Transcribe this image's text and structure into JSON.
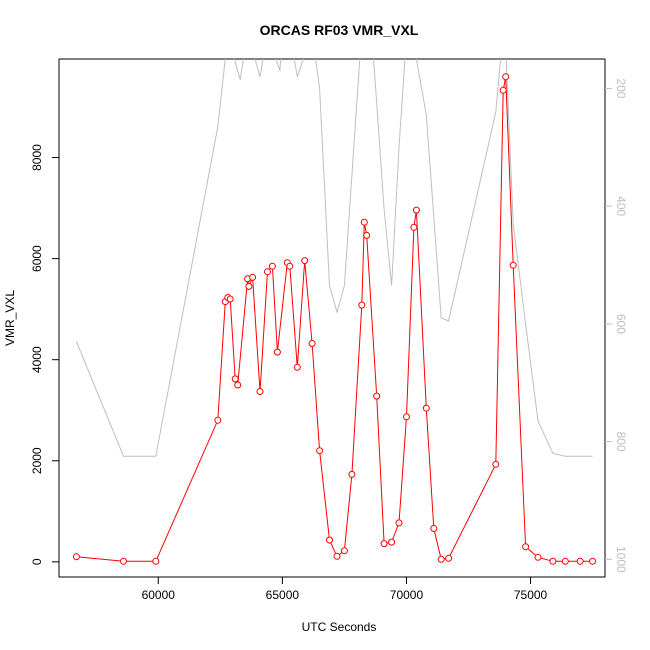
{
  "chart_data": {
    "type": "line",
    "title": "ORCAS RF03 VMR_VXL",
    "xlabel": "UTC Seconds",
    "ylabel": "VMR_VXL",
    "xlim": [
      56000,
      78000
    ],
    "ylim": [
      -300,
      9950
    ],
    "x_ticks": [
      60000,
      65000,
      70000,
      75000
    ],
    "x_tick_labels": [
      "60000",
      "65000",
      "70000",
      "75000"
    ],
    "y_ticks": [
      0,
      2000,
      4000,
      6000,
      8000
    ],
    "y_tick_labels": [
      "0",
      "2000",
      "4000",
      "6000",
      "8000"
    ],
    "y2lim": [
      1030,
      150
    ],
    "y2_ticks": [
      200,
      400,
      600,
      800,
      1000
    ],
    "y2_tick_labels": [
      "200",
      "400",
      "600",
      "800",
      "1000"
    ],
    "colors": {
      "primary": "#ff0000",
      "secondary": "#bebebe",
      "frame": "#000000"
    },
    "series": [
      {
        "axis": "left",
        "style": "line-points",
        "color": "#ff0000",
        "x": [
          56700,
          58600,
          59900,
          62400,
          62700,
          62800,
          62900,
          63100,
          63200,
          63600,
          63650,
          63800,
          64100,
          64400,
          64600,
          64800,
          65200,
          65300,
          65600,
          65900,
          66200,
          66500,
          66900,
          67200,
          67500,
          67800,
          68200,
          68300,
          68400,
          68800,
          69100,
          69400,
          69700,
          70000,
          70300,
          70400,
          70800,
          71100,
          71400,
          71700,
          73600,
          73900,
          74000,
          74300,
          74800,
          75300,
          75900,
          76400,
          77000,
          77500
        ],
        "y": [
          100,
          10,
          10,
          2800,
          5150,
          5230,
          5200,
          3620,
          3500,
          5600,
          5450,
          5630,
          3370,
          5740,
          5850,
          4150,
          5920,
          5850,
          3850,
          5960,
          4320,
          2200,
          430,
          110,
          220,
          1730,
          5080,
          6720,
          6460,
          3280,
          360,
          390,
          770,
          2870,
          6620,
          6960,
          3040,
          660,
          50,
          70,
          1930,
          9330,
          9600,
          5870,
          300,
          90,
          10,
          10,
          10,
          10
        ]
      },
      {
        "axis": "right",
        "style": "line",
        "color": "#bebebe",
        "x": [
          56700,
          58600,
          59900,
          62400,
          62800,
          63300,
          63600,
          64100,
          64400,
          64900,
          65000,
          65300,
          65600,
          66200,
          66500,
          66900,
          67200,
          67500,
          68200,
          68600,
          68800,
          69100,
          69400,
          69700,
          70000,
          70400,
          70800,
          71400,
          71700,
          73600,
          73900,
          74000,
          74300,
          74800,
          75300,
          75900,
          76400,
          77500
        ],
        "y": [
          630,
          825,
          825,
          265,
          110,
          185,
          105,
          180,
          105,
          170,
          110,
          105,
          180,
          105,
          200,
          535,
          580,
          535,
          100,
          105,
          225,
          405,
          535,
          300,
          110,
          150,
          245,
          590,
          595,
          240,
          100,
          130,
          430,
          600,
          765,
          820,
          825,
          825
        ]
      }
    ]
  }
}
